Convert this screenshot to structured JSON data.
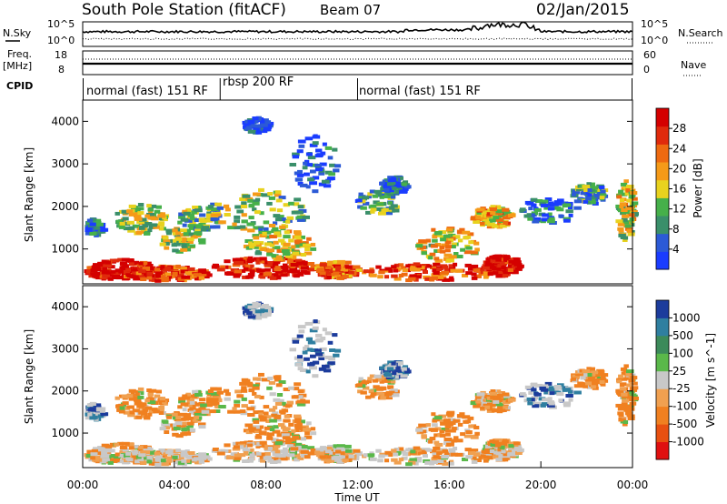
{
  "header": {
    "station": "South Pole Station (fitACF)",
    "beam": "Beam 07",
    "date": "02/Jan/2015"
  },
  "left_labels": {
    "nsky": "N.Sky",
    "freq": "Freq.",
    "freq_unit": "[MHz]",
    "cpid": "CPID"
  },
  "right_labels": {
    "nsearch": "N.Search",
    "nave": "Nave"
  },
  "cpid_segments": [
    {
      "label": "normal (fast) 151 RF",
      "start": 0,
      "end": 6
    },
    {
      "label": "rbsp 200 RF",
      "start": 6,
      "end": 12
    },
    {
      "label": "normal (fast) 151 RF",
      "start": 12,
      "end": 24
    }
  ],
  "noise_axis": {
    "left_ticks": [
      "10^5",
      "10^0"
    ],
    "right_ticks": [
      "10^5",
      "10^0"
    ]
  },
  "freq_axis": {
    "left_ticks": [
      "18",
      "8"
    ],
    "right_ticks": [
      "60",
      "0"
    ]
  },
  "chart_data": [
    {
      "type": "heatmap",
      "title": "Power",
      "ylabel": "Slant Range [km]",
      "ylim": [
        180,
        4500
      ],
      "yticks": [
        "1000",
        "2000",
        "3000",
        "4000"
      ],
      "colorbar_label": "Power [dB]",
      "colorbar_ticks": [
        "4",
        "8",
        "12",
        "16",
        "20",
        "24",
        "28"
      ],
      "colors": [
        "#1a3cff",
        "#2c5ad6",
        "#3a8f6a",
        "#46b04a",
        "#e8d21e",
        "#f59a18",
        "#ee6a10",
        "#e02a0c",
        "#d40000"
      ],
      "grid": false
    },
    {
      "type": "heatmap",
      "title": "Velocity",
      "ylabel": "Slant Range [km]",
      "xlabel": "Time UT",
      "xlim": [
        0,
        24
      ],
      "xticks": [
        "00:00",
        "04:00",
        "08:00",
        "12:00",
        "16:00",
        "20:00",
        "00:00"
      ],
      "ylim": [
        180,
        4500
      ],
      "yticks": [
        "1000",
        "2000",
        "3000",
        "4000"
      ],
      "colorbar_label": "Velocity [m s^-1]",
      "colorbar_ticks": [
        "1000",
        "500",
        "100",
        "25",
        "-25",
        "-100",
        "-500",
        "-1000"
      ],
      "colors": [
        "#1c3c9c",
        "#2f7fa0",
        "#3c8a5a",
        "#5ab84a",
        "#c8c8c8",
        "#f0a050",
        "#f08020",
        "#e85010",
        "#e01010"
      ],
      "grid": false
    }
  ]
}
